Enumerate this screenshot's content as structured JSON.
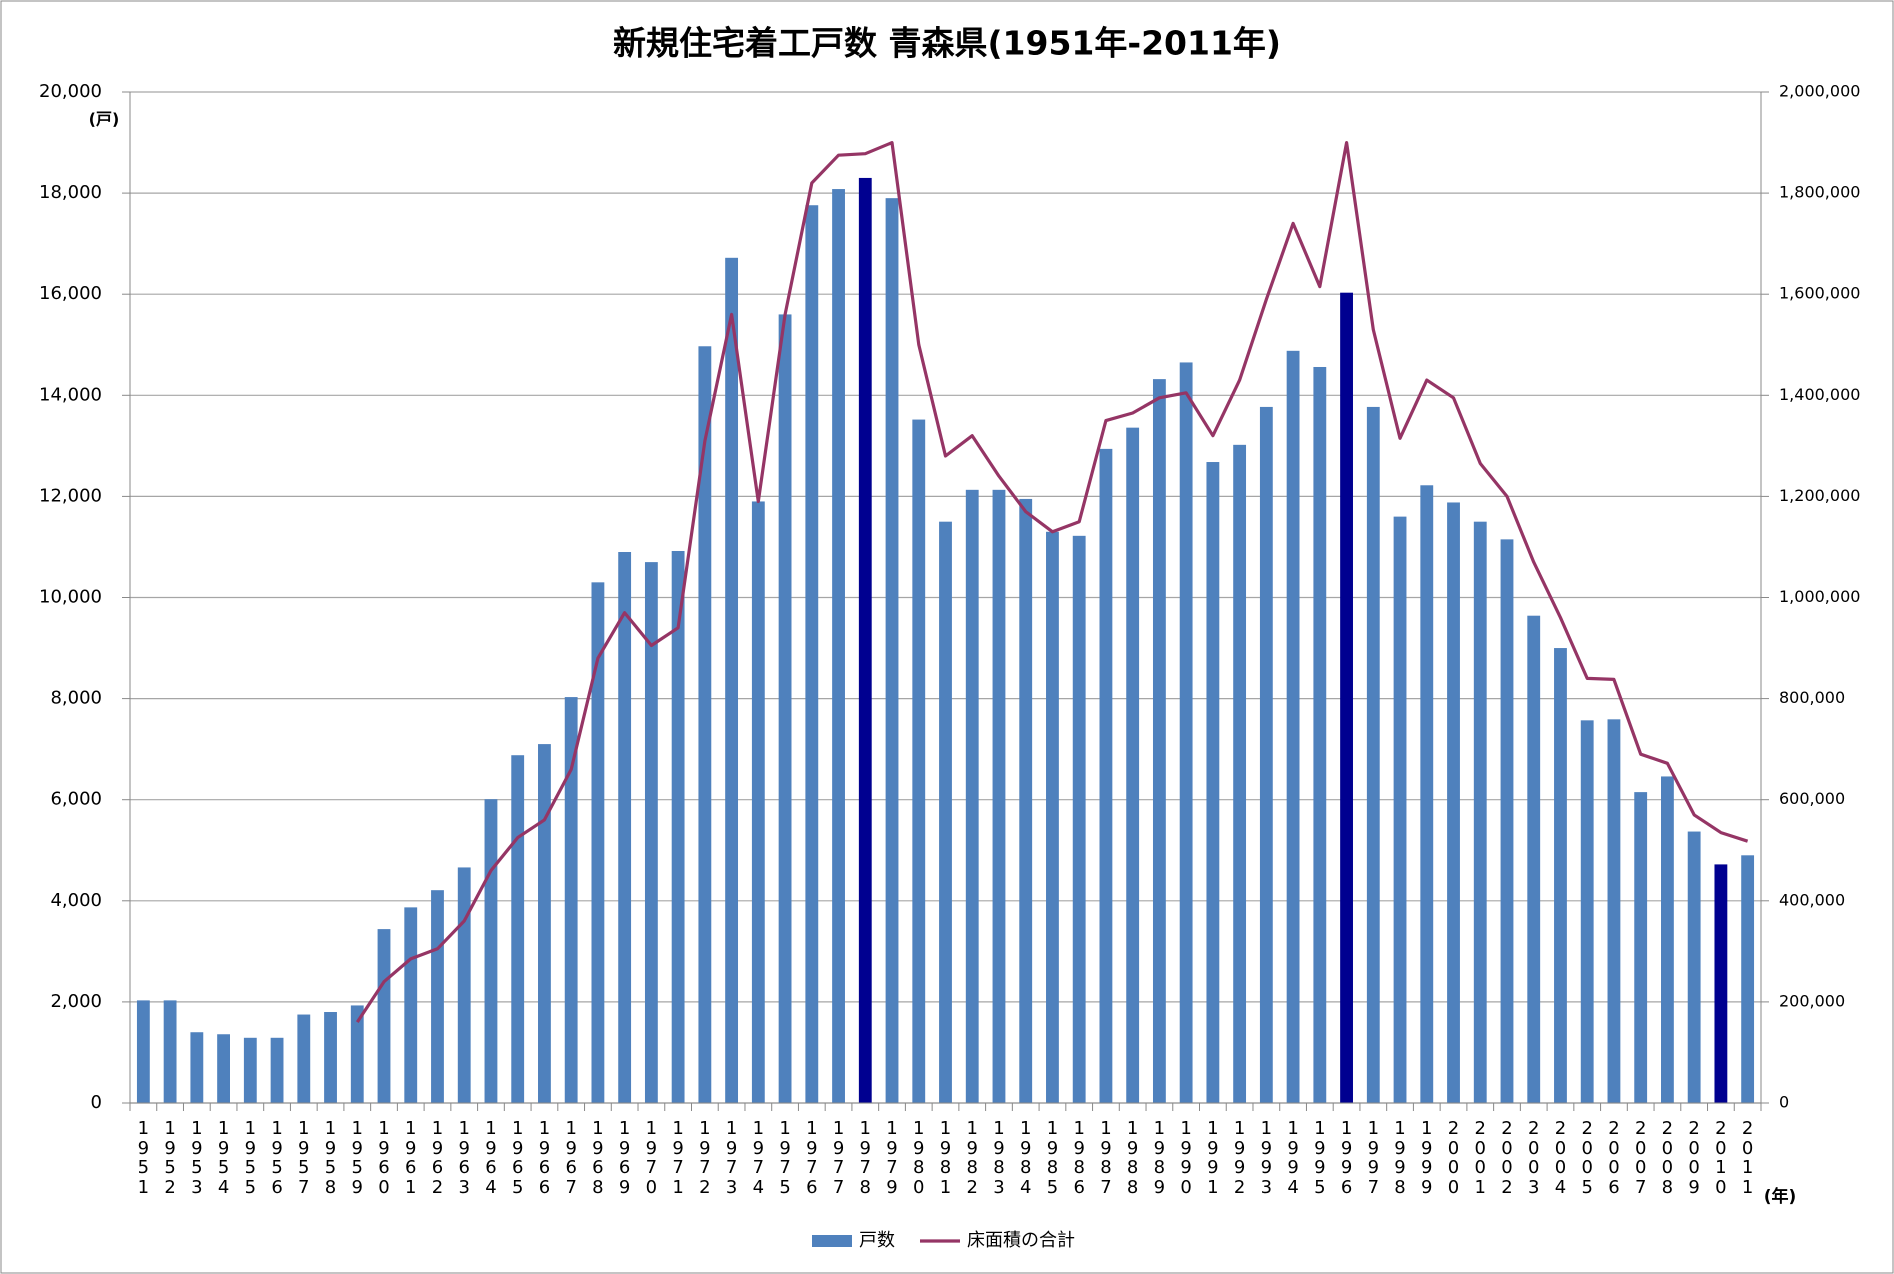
{
  "chart_data": {
    "type": "bar_line",
    "title": "新規住宅着工戸数 青森県(1951年-2011年)",
    "y_unit": "(戸)",
    "x_unit": "(年)",
    "categories": [
      "1951",
      "1952",
      "1953",
      "1954",
      "1955",
      "1956",
      "1957",
      "1958",
      "1959",
      "1960",
      "1961",
      "1962",
      "1963",
      "1964",
      "1965",
      "1966",
      "1967",
      "1968",
      "1969",
      "1970",
      "1971",
      "1972",
      "1973",
      "1974",
      "1975",
      "1976",
      "1977",
      "1978",
      "1979",
      "1980",
      "1981",
      "1982",
      "1983",
      "1984",
      "1985",
      "1986",
      "1987",
      "1988",
      "1989",
      "1990",
      "1991",
      "1992",
      "1993",
      "1994",
      "1995",
      "1996",
      "1997",
      "1998",
      "1999",
      "2000",
      "2001",
      "2002",
      "2003",
      "2004",
      "2005",
      "2006",
      "2007",
      "2008",
      "2009",
      "2010",
      "2011"
    ],
    "series": [
      {
        "name": "戸数",
        "type": "bar",
        "color": "#4f81bd",
        "values": [
          2030,
          2030,
          1400,
          1360,
          1290,
          1290,
          1750,
          1800,
          1930,
          3440,
          3870,
          4210,
          4660,
          6010,
          6880,
          7100,
          8030,
          10300,
          10900,
          10700,
          10920,
          14970,
          16720,
          11900,
          15600,
          17760,
          18080,
          18300,
          17900,
          13520,
          11500,
          12130,
          12130,
          11950,
          11300,
          11220,
          12940,
          13360,
          14320,
          14650,
          12680,
          13020,
          13770,
          14880,
          14560,
          16030,
          13770,
          11600,
          12220,
          11880,
          11500,
          11150,
          9640,
          9000,
          7570,
          7590,
          6150,
          6460,
          5370,
          4720,
          4900
        ]
      },
      {
        "name": "床面積の合計",
        "type": "line",
        "color": "#953565",
        "axis": "y2",
        "values": [
          null,
          null,
          null,
          null,
          null,
          null,
          null,
          null,
          160000,
          240000,
          285000,
          305000,
          360000,
          460000,
          525000,
          560000,
          660000,
          880000,
          970000,
          905000,
          940000,
          1310000,
          1560000,
          1190000,
          1560000,
          1820000,
          1875000,
          1878000,
          1900000,
          1500000,
          1280000,
          1320000,
          1240000,
          1170000,
          1130000,
          1150000,
          1350000,
          1365000,
          1395000,
          1405000,
          1320000,
          1430000,
          1590000,
          1740000,
          1615000,
          1900000,
          1530000,
          1315000,
          1430000,
          1395000,
          1265000,
          1200000,
          1070000,
          960000,
          840000,
          838000,
          690000,
          672000,
          570000,
          535000,
          518000
        ]
      }
    ],
    "highlight": {
      "color": "#000090",
      "categories": [
        "1978",
        "1996",
        "2010"
      ]
    },
    "ylim": [
      0,
      20000
    ],
    "yticks": [
      0,
      {
        "value": 2000,
        "label": "2,000"
      },
      {
        "value": 4000,
        "label": "4,000"
      },
      {
        "value": 6000,
        "label": "6,000"
      },
      {
        "value": 8000,
        "label": "8,000"
      },
      {
        "value": 10000,
        "label": "10,000"
      },
      {
        "value": 12000,
        "label": "12,000"
      },
      {
        "value": 14000,
        "label": "14,000"
      },
      {
        "value": 16000,
        "label": "16,000"
      },
      {
        "value": 18000,
        "label": "18,000"
      },
      {
        "value": 20000,
        "label": "20,000"
      }
    ],
    "y2lim": [
      0,
      2000000
    ],
    "y2ticks": [
      0,
      {
        "value": 200000,
        "label": "200,000"
      },
      {
        "value": 400000,
        "label": "400,000"
      },
      {
        "value": 600000,
        "label": "600,000"
      },
      {
        "value": 800000,
        "label": "800,000"
      },
      {
        "value": 1000000,
        "label": "1,000,000"
      },
      {
        "value": 1200000,
        "label": "1,200,000"
      },
      {
        "value": 1400000,
        "label": "1,400,000"
      },
      {
        "value": 1600000,
        "label": "1,600,000"
      },
      {
        "value": 1800000,
        "label": "1,800,000"
      },
      {
        "value": 2000000,
        "label": "2,000,000"
      }
    ],
    "grid": true,
    "legend": "bottom"
  }
}
